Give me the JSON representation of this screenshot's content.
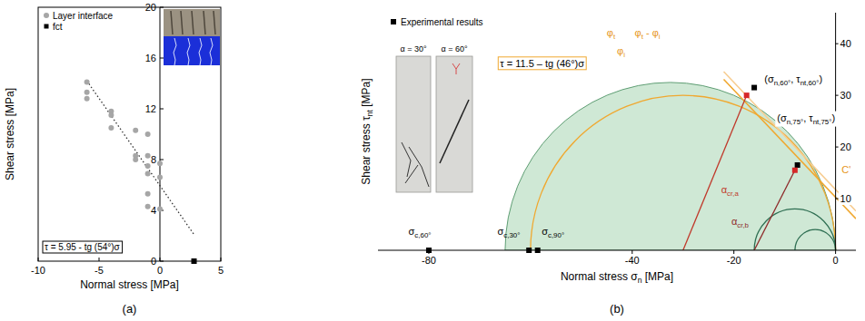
{
  "chart_data": [
    {
      "type": "scatter",
      "panel_label": "(a)",
      "x_label": "Normal stress [MPa]",
      "y_label": "Shear stress [MPa]",
      "xlim": [
        -10,
        5
      ],
      "ylim": [
        0,
        20
      ],
      "xticks": [
        -10,
        -5,
        0,
        5
      ],
      "yticks": [
        0,
        4,
        8,
        12,
        16,
        20
      ],
      "legend": "upper left",
      "series": [
        {
          "name": "Layer interface",
          "color": "#a6a6a6",
          "marker": "circle",
          "x": [
            -6,
            -6,
            -6,
            -4,
            -4,
            -4,
            -2,
            -2,
            -2,
            -1,
            -1,
            -1,
            -1,
            -1,
            -1,
            0,
            0,
            0
          ],
          "values": [
            14.1,
            13.3,
            12.8,
            11.8,
            11.5,
            10.5,
            10.3,
            8.3,
            8.0,
            10.0,
            8.3,
            7.5,
            6.9,
            5.3,
            4.3,
            7.7,
            6.6,
            4.1
          ]
        },
        {
          "name": "fct",
          "color": "#000000",
          "marker": "square",
          "x": [
            2.8
          ],
          "values": [
            0
          ]
        }
      ],
      "trend_line": {
        "x": [
          -6,
          2.8
        ],
        "values": [
          14.2,
          2.1
        ],
        "color": "#333333",
        "line_style": "dotted"
      },
      "annotation": "τ = 5.95 - tg (54°)σ"
    },
    {
      "type": "mohr",
      "panel_label": "(b)",
      "x_label": [
        {
          "text": "Normal stress σ"
        },
        {
          "text": "n",
          "sub": true
        },
        {
          "text": " [MPa]"
        }
      ],
      "y_label": [
        {
          "text": "Shear stress τ"
        },
        {
          "text": "nt",
          "sub": true
        },
        {
          "text": " [MPa]"
        }
      ],
      "xlim": [
        -90,
        4
      ],
      "ylim": [
        0,
        46
      ],
      "xticks": [
        -80,
        -40,
        -20,
        0
      ],
      "yticks": [
        10,
        20,
        30,
        40
      ],
      "legend": "upper left",
      "series": [
        {
          "name": "Experimental results",
          "color": "#000000",
          "marker": "square",
          "x": [
            -16,
            -7.5,
            -80,
            -60.3,
            -58.6
          ],
          "values": [
            31.5,
            16.5,
            0,
            0,
            0
          ]
        },
        {
          "color": "#d62728",
          "marker": "square",
          "x": [
            -17.5,
            -8
          ],
          "values": [
            30,
            15.5
          ]
        }
      ],
      "circles": [
        {
          "center": -32.5,
          "radius": 32.5,
          "color": "#cfe8d5",
          "type": "filled"
        },
        {
          "center": -30,
          "radius": 30,
          "color": "#f0a830",
          "type": "outline"
        },
        {
          "center": -8,
          "radius": 8,
          "color": "#2e6e52",
          "type": "outline"
        },
        {
          "center": -4,
          "radius": 4,
          "color": "#2e6e52",
          "type": "outline"
        }
      ],
      "tangent_lines": [
        {
          "x": [
            -22,
            4
          ],
          "values": [
            33.1,
            6.1
          ],
          "color": "#f0a830"
        },
        {
          "x": [
            -22,
            4
          ],
          "values": [
            34.6,
            7.6
          ],
          "color": "#f7cd92"
        }
      ],
      "construction_lines": [
        {
          "x": [
            -17.5,
            -30
          ],
          "values": [
            30,
            0
          ],
          "color": "#c0392b"
        },
        {
          "x": [
            -8,
            -16
          ],
          "values": [
            15.5,
            0
          ],
          "color": "#8e2b2b"
        }
      ],
      "equation": {
        "text": "τ = 11.5 – tg (46°)σ",
        "at": [
          -66,
          35.5
        ],
        "color": "#f0a830"
      },
      "texts": [
        {
          "parts": [
            {
              "text": "σ"
            },
            {
              "text": "c,60°",
              "sub": true
            }
          ],
          "at": [
            -84,
            3
          ]
        },
        {
          "parts": [
            {
              "text": "σ"
            },
            {
              "text": "c,30°",
              "sub": true
            }
          ],
          "at": [
            -66.5,
            3
          ]
        },
        {
          "parts": [
            {
              "text": "σ"
            },
            {
              "text": "c,90°",
              "sub": true
            }
          ],
          "at": [
            -57.8,
            3
          ]
        },
        {
          "parts": [
            {
              "text": "(σ"
            },
            {
              "text": "n,60°",
              "sub": true
            },
            {
              "text": ", τ"
            },
            {
              "text": "nt,60°",
              "sub": true
            },
            {
              "text": ")"
            }
          ],
          "at": [
            -14,
            32.5
          ]
        },
        {
          "parts": [
            {
              "text": "(σ"
            },
            {
              "text": "n,75°",
              "sub": true
            },
            {
              "text": ", τ"
            },
            {
              "text": "nt,75°",
              "sub": true
            },
            {
              "text": ")"
            }
          ],
          "at": [
            -11.5,
            25
          ]
        },
        {
          "parts": [
            {
              "text": "α"
            },
            {
              "text": "cr,a",
              "sub": true
            }
          ],
          "at": [
            -22.5,
            11
          ],
          "color": "#c0392b"
        },
        {
          "parts": [
            {
              "text": "α"
            },
            {
              "text": "cr,b",
              "sub": true
            }
          ],
          "at": [
            -20.5,
            5
          ],
          "color": "#8e2b2b"
        },
        {
          "parts": [
            {
              "text": "φ"
            },
            {
              "text": "t",
              "sub": true
            }
          ],
          "at": [
            -45,
            41.5
          ],
          "color": "#e69520"
        },
        {
          "parts": [
            {
              "text": "φ"
            },
            {
              "text": "t",
              "sub": true
            },
            {
              "text": " - φ"
            },
            {
              "text": "i",
              "sub": true
            }
          ],
          "at": [
            -39.5,
            41.5
          ],
          "color": "#e69520"
        },
        {
          "parts": [
            {
              "text": "φ"
            },
            {
              "text": "i",
              "sub": true
            }
          ],
          "at": [
            -43,
            38
          ],
          "color": "#e69520"
        },
        {
          "parts": [
            {
              "text": "C'"
            }
          ],
          "at": [
            1.2,
            15
          ],
          "color": "#e69520"
        }
      ],
      "insets": [
        {
          "caption": "α = 30°"
        },
        {
          "caption": "α = 60°"
        }
      ]
    }
  ]
}
